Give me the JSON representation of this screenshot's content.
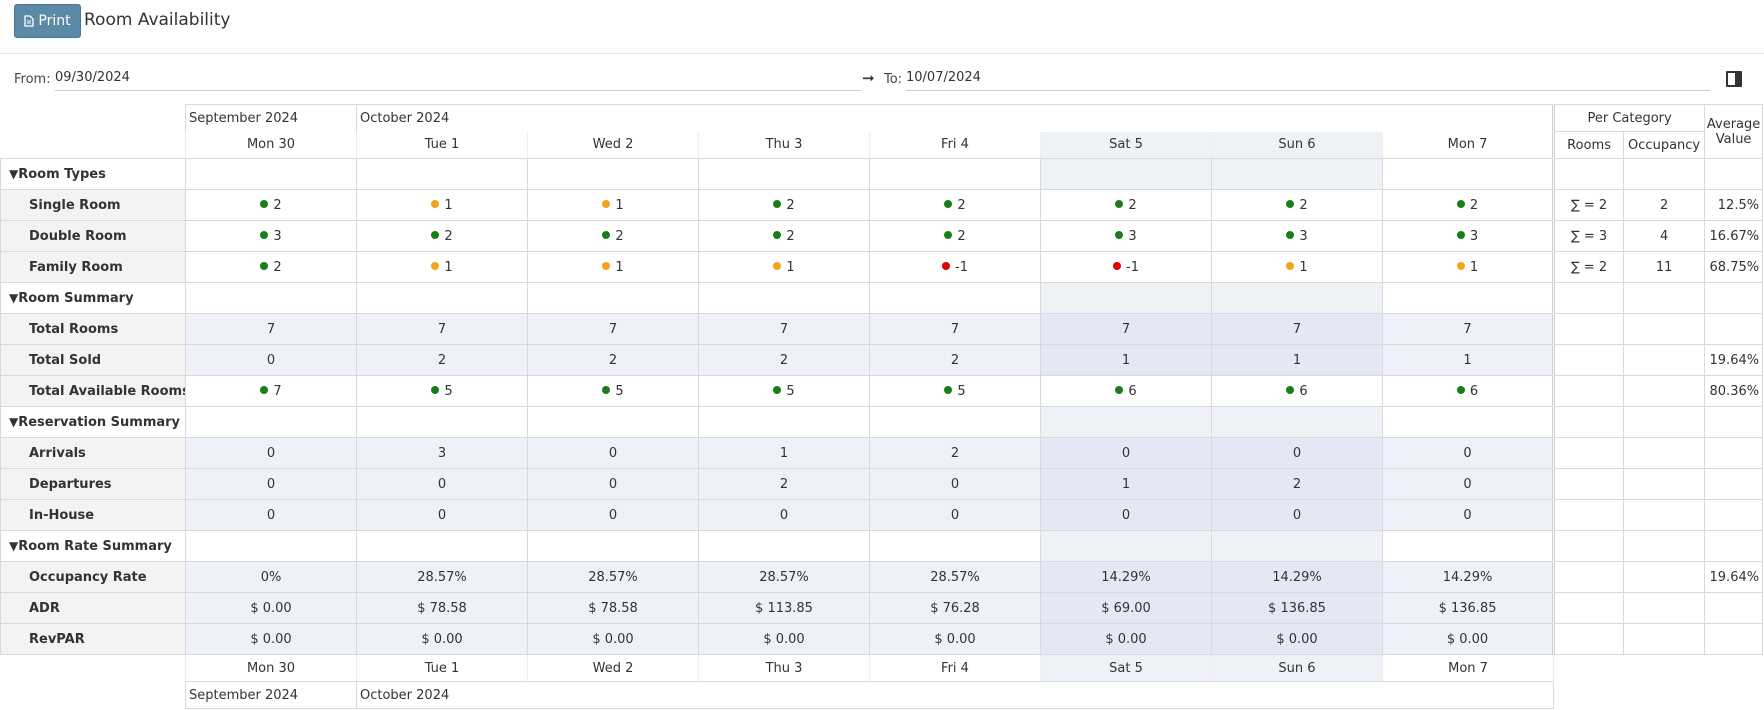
{
  "header": {
    "print_button": "Print",
    "title": "Room Availability"
  },
  "filters": {
    "from_label": "From:",
    "from_value": "09/30/2024",
    "to_label": "To:",
    "to_value": "10/07/2024"
  },
  "grid": {
    "months": [
      "September 2024",
      "October 2024"
    ],
    "days": [
      "Mon 30",
      "Tue 1",
      "Wed 2",
      "Thu 3",
      "Fri 4",
      "Sat 5",
      "Sun 6",
      "Mon 7"
    ],
    "per_category": {
      "title": "Per Category",
      "columns": [
        "Rooms",
        "Occupancy"
      ],
      "average": "Average Value"
    },
    "sections": [
      {
        "title": "Room Types",
        "rows": [
          {
            "label": "Single Room",
            "cells": [
              2,
              1,
              1,
              2,
              2,
              2,
              2,
              2
            ],
            "status": [
              "#1a7d1a",
              "#f5a21c",
              "#f5a21c",
              "#1a7d1a",
              "#1a7d1a",
              "#1a7d1a",
              "#1a7d1a",
              "#1a7d1a"
            ],
            "rooms": "∑ = 2",
            "occupancy": 2,
            "average": "12.5%"
          },
          {
            "label": "Double Room",
            "cells": [
              3,
              2,
              2,
              2,
              2,
              3,
              3,
              3
            ],
            "status": [
              "#1a7d1a",
              "#1a7d1a",
              "#1a7d1a",
              "#1a7d1a",
              "#1a7d1a",
              "#1a7d1a",
              "#1a7d1a",
              "#1a7d1a"
            ],
            "rooms": "∑ = 3",
            "occupancy": 4,
            "average": "16.67%"
          },
          {
            "label": "Family Room",
            "cells": [
              2,
              1,
              1,
              1,
              -1,
              -1,
              1,
              1
            ],
            "status": [
              "#1a7d1a",
              "#f5a21c",
              "#f5a21c",
              "#f5a21c",
              "#e00000",
              "#e00000",
              "#f5a21c",
              "#f5a21c"
            ],
            "rooms": "∑ = 2",
            "occupancy": 11,
            "average": "68.75%"
          }
        ]
      },
      {
        "title": "Room Summary",
        "rows": [
          {
            "label": "Total Rooms",
            "cells": [
              7,
              7,
              7,
              7,
              7,
              7,
              7,
              7
            ]
          },
          {
            "label": "Total Sold",
            "cells": [
              0,
              2,
              2,
              2,
              2,
              1,
              1,
              1
            ],
            "average": "19.64%"
          },
          {
            "label": "Total Available Rooms",
            "cells": [
              7,
              5,
              5,
              5,
              5,
              6,
              6,
              6
            ],
            "status": [
              "#1a7d1a",
              "#1a7d1a",
              "#1a7d1a",
              "#1a7d1a",
              "#1a7d1a",
              "#1a7d1a",
              "#1a7d1a",
              "#1a7d1a"
            ],
            "average": "80.36%"
          }
        ]
      },
      {
        "title": "Reservation Summary",
        "rows": [
          {
            "label": "Arrivals",
            "cells": [
              0,
              3,
              0,
              1,
              2,
              0,
              0,
              0
            ]
          },
          {
            "label": "Departures",
            "cells": [
              0,
              0,
              0,
              2,
              0,
              1,
              2,
              0
            ]
          },
          {
            "label": "In-House",
            "cells": [
              0,
              0,
              0,
              0,
              0,
              0,
              0,
              0
            ]
          }
        ]
      },
      {
        "title": "Room Rate Summary",
        "rows": [
          {
            "label": "Occupancy Rate",
            "cells": [
              "0%",
              "28.57%",
              "28.57%",
              "28.57%",
              "28.57%",
              "14.29%",
              "14.29%",
              "14.29%"
            ],
            "average": "19.64%"
          },
          {
            "label": "ADR",
            "cells": [
              "$ 0.00",
              "$ 78.58",
              "$ 78.58",
              "$ 113.85",
              "$ 76.28",
              "$ 69.00",
              "$ 136.85",
              "$ 136.85"
            ]
          },
          {
            "label": "RevPAR",
            "cells": [
              "$ 0.00",
              "$ 0.00",
              "$ 0.00",
              "$ 0.00",
              "$ 0.00",
              "$ 0.00",
              "$ 0.00",
              "$ 0.00"
            ]
          }
        ]
      }
    ]
  }
}
